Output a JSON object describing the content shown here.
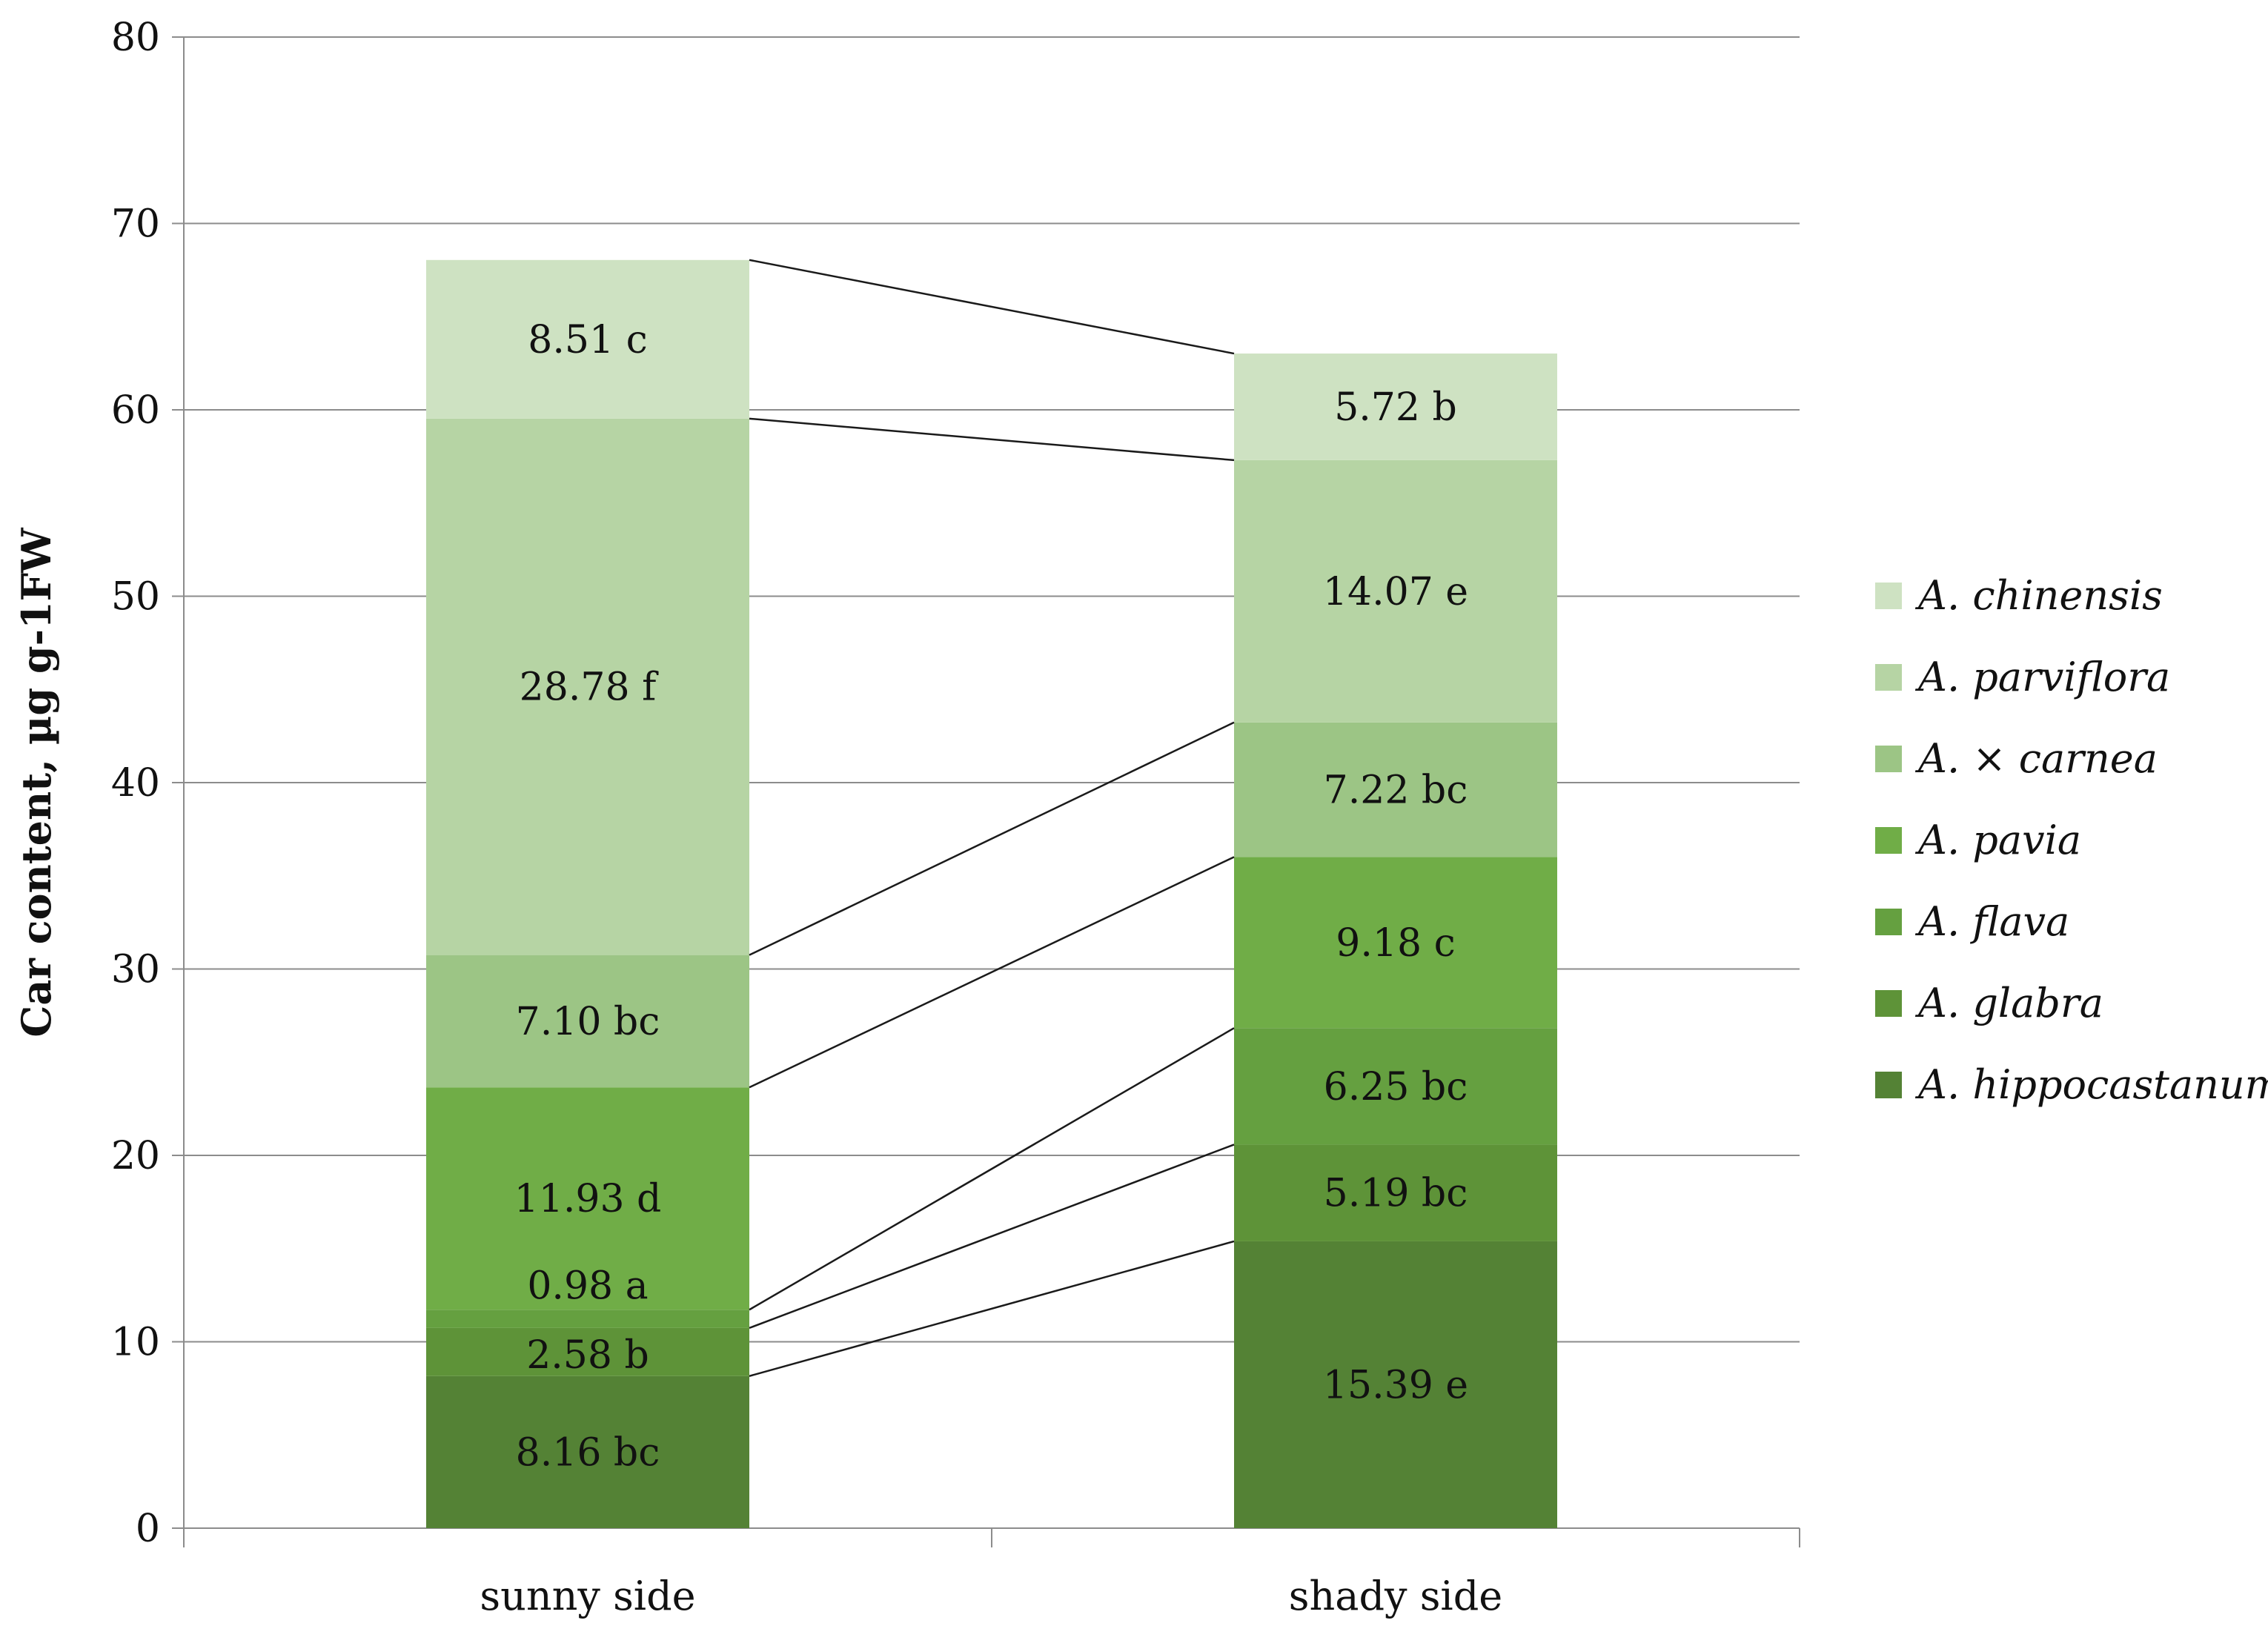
{
  "chart_data": {
    "type": "bar",
    "stacked": true,
    "categories": [
      "sunny side",
      "shady side"
    ],
    "ylabel": "Car content, µg g-1FW",
    "xlabel": "",
    "ylim": [
      0,
      80
    ],
    "yticks": [
      0,
      10,
      20,
      30,
      40,
      50,
      60,
      70,
      80
    ],
    "grid": true,
    "legend_position": "right",
    "series_lines": true,
    "series": [
      {
        "name": "A. hippocastanum",
        "color": "#548235",
        "values": [
          8.16,
          15.39
        ],
        "labels": [
          "8.16 bc",
          "15.39 e"
        ]
      },
      {
        "name": "A. glabra",
        "color": "#5e9338",
        "values": [
          2.58,
          5.19
        ],
        "labels": [
          "2.58 b",
          "5.19 bc"
        ]
      },
      {
        "name": "A. flava",
        "color": "#65a040",
        "values": [
          0.98,
          6.25
        ],
        "labels": [
          "0.98 a",
          "6.25 bc"
        ]
      },
      {
        "name": "A. pavia",
        "color": "#70ad47",
        "values": [
          11.93,
          9.18
        ],
        "labels": [
          "11.93 d",
          "9.18 c"
        ]
      },
      {
        "name": "A. × carnea",
        "color": "#9cc585",
        "values": [
          7.1,
          7.22
        ],
        "labels": [
          "7.10 bc",
          "7.22 bc"
        ]
      },
      {
        "name": "A. parviflora",
        "color": "#b6d4a4",
        "values": [
          28.78,
          14.07
        ],
        "labels": [
          "28.78 f",
          "14.07 e"
        ]
      },
      {
        "name": "A. chinensis",
        "color": "#cee2c2",
        "values": [
          8.51,
          5.72
        ],
        "labels": [
          "8.51 c",
          "5.72 b"
        ]
      }
    ]
  }
}
